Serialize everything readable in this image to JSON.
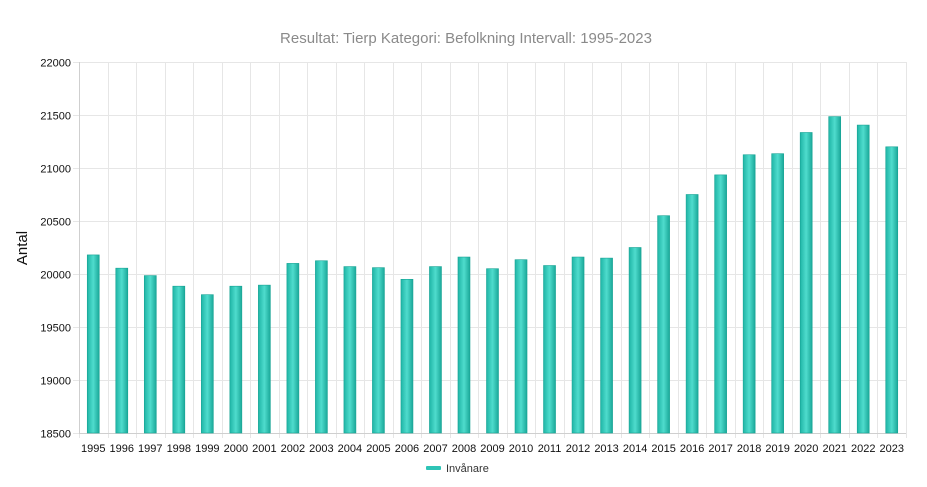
{
  "chart_data": {
    "type": "bar",
    "title": "Resultat: Tierp Kategori: Befolkning Intervall: 1995-2023",
    "xlabel": "",
    "ylabel": "Antal",
    "ylim": [
      18500,
      22000
    ],
    "yticks": [
      18500,
      19000,
      19500,
      20000,
      20500,
      21000,
      21500,
      22000
    ],
    "grid": true,
    "legend_position": "bottom",
    "categories": [
      "1995",
      "1996",
      "1997",
      "1998",
      "1999",
      "2000",
      "2001",
      "2002",
      "2003",
      "2004",
      "2005",
      "2006",
      "2007",
      "2008",
      "2009",
      "2010",
      "2011",
      "2012",
      "2013",
      "2014",
      "2015",
      "2016",
      "2017",
      "2018",
      "2019",
      "2020",
      "2021",
      "2022",
      "2023"
    ],
    "series": [
      {
        "name": "Invånare",
        "color": "#2ec4b6",
        "values": [
          20180,
          20055,
          19985,
          19885,
          19805,
          19885,
          19895,
          20100,
          20125,
          20070,
          20060,
          19950,
          20070,
          20160,
          20050,
          20135,
          20080,
          20160,
          20150,
          20250,
          20550,
          20750,
          20935,
          21125,
          21135,
          21335,
          21485,
          21405,
          21200
        ]
      }
    ]
  }
}
